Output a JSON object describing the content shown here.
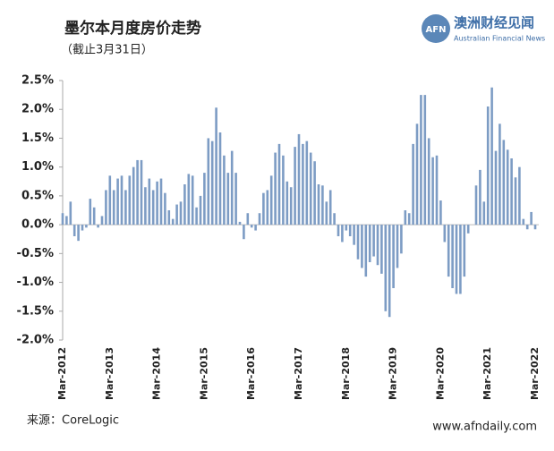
{
  "header": {
    "logo_mark": "AFN",
    "logo_name": "澳洲财经见闻",
    "logo_subtitle": "Australian Financial News"
  },
  "footer": {
    "source": "来源：CoreLogic",
    "website": "www.afndaily.com"
  },
  "chart_data": {
    "type": "bar",
    "title": "墨尔本月度房价走势",
    "subtitle": "（截止3月31日）",
    "color": "#7d9cc4",
    "grid": false,
    "ylim": [
      -2.0,
      2.5
    ],
    "yticks": [
      {
        "value": 2.5,
        "label": "2.5%"
      },
      {
        "value": 2.0,
        "label": "2.0%"
      },
      {
        "value": 1.5,
        "label": "1.5%"
      },
      {
        "value": 1.0,
        "label": "1.0%"
      },
      {
        "value": 0.5,
        "label": "0.5%"
      },
      {
        "value": 0.0,
        "label": "0.0%"
      },
      {
        "value": -0.5,
        "label": "-0.5%"
      },
      {
        "value": -1.0,
        "label": "-1.0%"
      },
      {
        "value": -1.5,
        "label": "-1.5%"
      },
      {
        "value": -2.0,
        "label": "-2.0%"
      }
    ],
    "categories": [
      "Mar-2012",
      null,
      null,
      null,
      null,
      null,
      null,
      null,
      null,
      null,
      null,
      null,
      "Mar-2013",
      null,
      null,
      null,
      null,
      null,
      null,
      null,
      null,
      null,
      null,
      null,
      "Mar-2014",
      null,
      null,
      null,
      null,
      null,
      null,
      null,
      null,
      null,
      null,
      null,
      "Mar-2015",
      null,
      null,
      null,
      null,
      null,
      null,
      null,
      null,
      null,
      null,
      null,
      "Mar-2016",
      null,
      null,
      null,
      null,
      null,
      null,
      null,
      null,
      null,
      null,
      null,
      "Mar-2017",
      null,
      null,
      null,
      null,
      null,
      null,
      null,
      null,
      null,
      null,
      null,
      "Mar-2018",
      null,
      null,
      null,
      null,
      null,
      null,
      null,
      null,
      null,
      null,
      null,
      "Mar-2019",
      null,
      null,
      null,
      null,
      null,
      null,
      null,
      null,
      null,
      null,
      null,
      "Mar-2020",
      null,
      null,
      null,
      null,
      null,
      null,
      null,
      null,
      null,
      null,
      null,
      "Mar-2021",
      null,
      null,
      null,
      null,
      null,
      null,
      null,
      null,
      null,
      null,
      null,
      "Mar-2022"
    ],
    "values": [
      0.2,
      0.15,
      0.4,
      -0.2,
      -0.28,
      -0.1,
      -0.05,
      0.45,
      0.3,
      -0.05,
      0.15,
      0.6,
      0.85,
      0.6,
      0.8,
      0.85,
      0.6,
      0.85,
      1.0,
      1.12,
      1.12,
      0.65,
      0.8,
      0.6,
      0.75,
      0.8,
      0.55,
      0.25,
      0.1,
      0.35,
      0.4,
      0.7,
      0.88,
      0.85,
      0.3,
      0.5,
      0.9,
      1.5,
      1.45,
      2.03,
      1.6,
      1.2,
      0.9,
      1.28,
      0.9,
      0.05,
      -0.25,
      0.2,
      -0.05,
      -0.1,
      0.2,
      0.55,
      0.6,
      0.85,
      1.25,
      1.4,
      1.2,
      0.75,
      0.65,
      1.35,
      1.57,
      1.4,
      1.45,
      1.25,
      1.1,
      0.7,
      0.68,
      0.4,
      0.6,
      0.2,
      -0.2,
      -0.3,
      -0.1,
      -0.2,
      -0.35,
      -0.6,
      -0.75,
      -0.9,
      -0.65,
      -0.55,
      -0.7,
      -0.85,
      -1.5,
      -1.6,
      -1.1,
      -0.75,
      -0.5,
      0.25,
      0.2,
      1.4,
      1.75,
      2.25,
      2.25,
      1.5,
      1.17,
      1.2,
      0.42,
      -0.3,
      -0.9,
      -1.1,
      -1.2,
      -1.2,
      -0.9,
      -0.15,
      0.0,
      0.68,
      0.95,
      0.4,
      2.05,
      2.38,
      1.28,
      1.75,
      1.47,
      1.3,
      1.15,
      0.82,
      1.0,
      0.1,
      -0.08,
      0.22,
      -0.08
    ]
  }
}
